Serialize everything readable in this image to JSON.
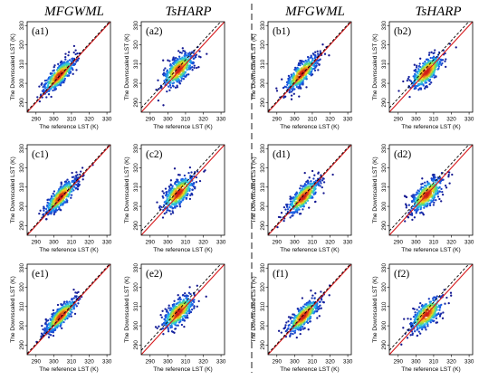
{
  "headers": [
    "MFGWML",
    "TsHARP",
    "MFGWML",
    "TsHARP"
  ],
  "chart_data": [
    {
      "panel_label": "(a1)",
      "type": "scatter",
      "method": "MFGWML",
      "xlabel": "The reference LST (K)",
      "ylabel": "The Downscaled LST (K)",
      "xlim": [
        285,
        332
      ],
      "ylim": [
        285,
        332
      ],
      "xticks": [
        290,
        300,
        310,
        320,
        330
      ],
      "yticks": [
        290,
        300,
        310,
        320,
        330
      ],
      "center": [
        303,
        304
      ],
      "spread": [
        7.5,
        2.0
      ],
      "x_range": [
        290,
        325
      ],
      "lines": [
        "1:1 reference line (red)",
        "fitted regression line (black dashed)"
      ]
    },
    {
      "panel_label": "(a2)",
      "type": "scatter",
      "method": "TsHARP",
      "xlabel": "The reference LST (K)",
      "ylabel": "The Downscaled LST (K)",
      "xlim": [
        285,
        332
      ],
      "ylim": [
        285,
        332
      ],
      "xticks": [
        290,
        300,
        310,
        320,
        330
      ],
      "yticks": [
        290,
        300,
        310,
        320,
        330
      ],
      "center": [
        306,
        307
      ],
      "spread": [
        7.0,
        2.6
      ],
      "x_range": [
        292,
        327
      ],
      "lines": [
        "1:1 reference line (red)",
        "fitted regression line (black dashed)"
      ]
    },
    {
      "panel_label": "(b1)",
      "type": "scatter",
      "method": "MFGWML",
      "xlabel": "The reference LST (K)",
      "ylabel": "The Downscaled LST (K)",
      "xlim": [
        285,
        332
      ],
      "ylim": [
        285,
        332
      ],
      "xticks": [
        290,
        300,
        310,
        320,
        330
      ],
      "yticks": [
        290,
        300,
        310,
        320,
        330
      ],
      "center": [
        304,
        305
      ],
      "spread": [
        7.5,
        2.1
      ],
      "x_range": [
        291,
        325
      ],
      "lines": [
        "1:1 reference line (red)",
        "fitted regression line (black dashed)"
      ]
    },
    {
      "panel_label": "(b2)",
      "type": "scatter",
      "method": "TsHARP",
      "xlabel": "The reference LST (K)",
      "ylabel": "The Downscaled LST (K)",
      "xlim": [
        285,
        332
      ],
      "ylim": [
        285,
        332
      ],
      "xticks": [
        290,
        300,
        310,
        320,
        330
      ],
      "yticks": [
        290,
        300,
        310,
        320,
        330
      ],
      "center": [
        306,
        306
      ],
      "spread": [
        7.0,
        2.5
      ],
      "x_range": [
        292,
        327
      ],
      "lines": [
        "1:1 reference line (red)",
        "fitted regression line (black dashed)"
      ]
    },
    {
      "panel_label": "(c1)",
      "type": "scatter",
      "method": "MFGWML",
      "xlabel": "The reference LST (K)",
      "ylabel": "The Downscaled LST (K)",
      "xlim": [
        285,
        332
      ],
      "ylim": [
        285,
        332
      ],
      "xticks": [
        290,
        300,
        310,
        320,
        330
      ],
      "yticks": [
        290,
        300,
        310,
        320,
        330
      ],
      "center": [
        304,
        305
      ],
      "spread": [
        7.5,
        2.0
      ],
      "x_range": [
        292,
        325
      ],
      "lines": [
        "1:1 reference line (red)",
        "fitted regression line (black dashed)"
      ]
    },
    {
      "panel_label": "(c2)",
      "type": "scatter",
      "method": "TsHARP",
      "xlabel": "The reference LST (K)",
      "ylabel": "The Downscaled LST (K)",
      "xlim": [
        285,
        332
      ],
      "ylim": [
        285,
        332
      ],
      "xticks": [
        290,
        300,
        310,
        320,
        330
      ],
      "yticks": [
        290,
        300,
        310,
        320,
        330
      ],
      "center": [
        306,
        307
      ],
      "spread": [
        7.0,
        2.6
      ],
      "x_range": [
        293,
        327
      ],
      "lines": [
        "1:1 reference line (red)",
        "fitted regression line (black dashed)"
      ]
    },
    {
      "panel_label": "(d1)",
      "type": "scatter",
      "method": "MFGWML",
      "xlabel": "The reference LST (K)",
      "ylabel": "The Downscaled LST (K)",
      "xlim": [
        285,
        332
      ],
      "ylim": [
        285,
        332
      ],
      "xticks": [
        290,
        300,
        310,
        320,
        330
      ],
      "yticks": [
        290,
        300,
        310,
        320,
        330
      ],
      "center": [
        305,
        305
      ],
      "spread": [
        7.5,
        2.2
      ],
      "x_range": [
        292,
        325
      ],
      "lines": [
        "1:1 reference line (red)",
        "fitted regression line (black dashed)"
      ]
    },
    {
      "panel_label": "(d2)",
      "type": "scatter",
      "method": "TsHARP",
      "xlabel": "The reference LST (K)",
      "ylabel": "The Downscaled LST (K)",
      "xlim": [
        285,
        332
      ],
      "ylim": [
        285,
        332
      ],
      "xticks": [
        290,
        300,
        310,
        320,
        330
      ],
      "yticks": [
        290,
        300,
        310,
        320,
        330
      ],
      "center": [
        306,
        306
      ],
      "spread": [
        7.0,
        2.6
      ],
      "x_range": [
        293,
        327
      ],
      "lines": [
        "1:1 reference line (red)",
        "fitted regression line (black dashed)"
      ]
    },
    {
      "panel_label": "(e1)",
      "type": "scatter",
      "method": "MFGWML",
      "xlabel": "The reference LST (K)",
      "ylabel": "The Downscaled LST (K)",
      "xlim": [
        285,
        332
      ],
      "ylim": [
        285,
        332
      ],
      "xticks": [
        290,
        300,
        310,
        320,
        330
      ],
      "yticks": [
        290,
        300,
        310,
        320,
        330
      ],
      "center": [
        304,
        305
      ],
      "spread": [
        7.5,
        1.9
      ],
      "x_range": [
        292,
        325
      ],
      "lines": [
        "1:1 reference line (red)",
        "fitted regression line (black dashed)"
      ]
    },
    {
      "panel_label": "(e2)",
      "type": "scatter",
      "method": "TsHARP",
      "xlabel": "The reference LST (K)",
      "ylabel": "The Downscaled LST (K)",
      "xlim": [
        285,
        332
      ],
      "ylim": [
        285,
        332
      ],
      "xticks": [
        290,
        300,
        310,
        320,
        330
      ],
      "yticks": [
        290,
        300,
        310,
        320,
        330
      ],
      "center": [
        306,
        307
      ],
      "spread": [
        7.0,
        2.5
      ],
      "x_range": [
        293,
        327
      ],
      "lines": [
        "1:1 reference line (red)",
        "fitted regression line (black dashed)"
      ]
    },
    {
      "panel_label": "(f1)",
      "type": "scatter",
      "method": "MFGWML",
      "xlabel": "The reference LST (K)",
      "ylabel": "The Downscaled LST (K)",
      "xlim": [
        285,
        332
      ],
      "ylim": [
        285,
        332
      ],
      "xticks": [
        290,
        300,
        310,
        320,
        330
      ],
      "yticks": [
        290,
        300,
        310,
        320,
        330
      ],
      "center": [
        305,
        305
      ],
      "spread": [
        7.5,
        2.1
      ],
      "x_range": [
        292,
        325
      ],
      "lines": [
        "1:1 reference line (red)",
        "fitted regression line (black dashed)"
      ]
    },
    {
      "panel_label": "(f2)",
      "type": "scatter",
      "method": "TsHARP",
      "xlabel": "The reference LST (K)",
      "ylabel": "The Downscaled LST (K)",
      "xlim": [
        285,
        332
      ],
      "ylim": [
        285,
        332
      ],
      "xticks": [
        290,
        300,
        310,
        320,
        330
      ],
      "yticks": [
        290,
        300,
        310,
        320,
        330
      ],
      "center": [
        306,
        306
      ],
      "spread": [
        7.0,
        2.6
      ],
      "x_range": [
        293,
        327
      ],
      "lines": [
        "1:1 reference line (red)",
        "fitted regression line (black dashed)"
      ]
    }
  ],
  "colors": {
    "ref_line": "#d7191c",
    "fit_line": "#000000",
    "divider": "#333333",
    "density_low": "#1a1aa8",
    "density_high": "#d01010"
  }
}
